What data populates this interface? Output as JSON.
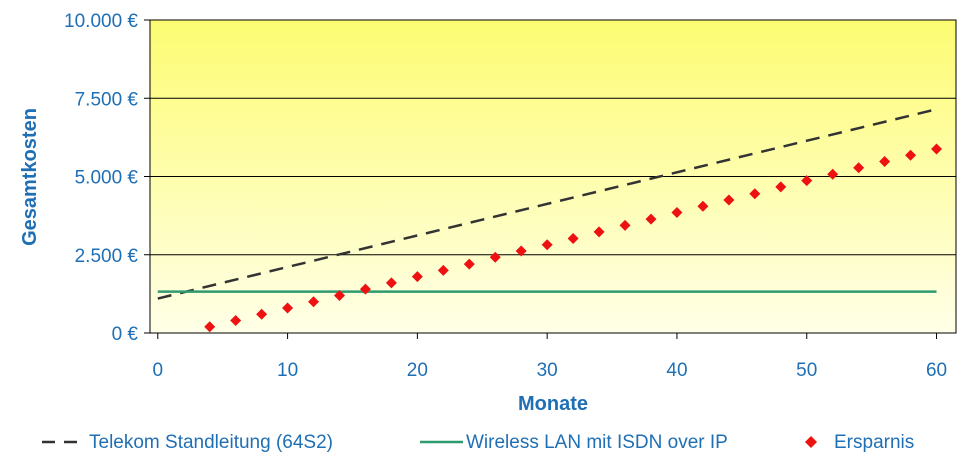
{
  "chart_data": {
    "type": "line",
    "title": "",
    "xlabel": "Monate",
    "ylabel": "Gesamtkosten",
    "xlim": [
      -0.6,
      61.5
    ],
    "ylim": [
      0,
      10000
    ],
    "x_ticks": [
      0,
      10,
      20,
      30,
      40,
      50,
      60
    ],
    "x_tick_labels": [
      "0",
      "10",
      "20",
      "30",
      "40",
      "50",
      "60"
    ],
    "y_ticks": [
      0,
      2500,
      5000,
      7500,
      10000
    ],
    "y_tick_labels": [
      "0 €",
      "2.500 €",
      "5.000 €",
      "7.500 €",
      "10.000 €"
    ],
    "grid": "horizontal",
    "legend_position": "bottom",
    "background": {
      "top_color": "#fdfc72",
      "bottom_color": "#ffffe8"
    },
    "series": [
      {
        "name": "Telekom Standleitung (64S2)",
        "kind": "line",
        "style": "dashed",
        "color": "#333333",
        "x": [
          0,
          60
        ],
        "y": [
          1100,
          7150
        ]
      },
      {
        "name": "Wireless LAN mit ISDN over IP",
        "kind": "line",
        "style": "solid",
        "color": "#2e9a6f",
        "x": [
          0,
          60
        ],
        "y": [
          1320,
          1320
        ]
      },
      {
        "name": "Ersparnis",
        "kind": "scatter",
        "marker": "diamond",
        "color": "#ee1111",
        "x": [
          4,
          6,
          8,
          10,
          12,
          14,
          16,
          18,
          20,
          22,
          24,
          26,
          28,
          30,
          32,
          34,
          36,
          38,
          40,
          42,
          44,
          46,
          48,
          50,
          52,
          54,
          56,
          58,
          60
        ],
        "y": [
          200,
          400,
          600,
          800,
          1000,
          1200,
          1400,
          1600,
          1800,
          2000,
          2200,
          2420,
          2620,
          2820,
          3020,
          3230,
          3440,
          3640,
          3850,
          4050,
          4250,
          4450,
          4670,
          4870,
          5070,
          5280,
          5480,
          5680,
          5880
        ]
      }
    ]
  }
}
